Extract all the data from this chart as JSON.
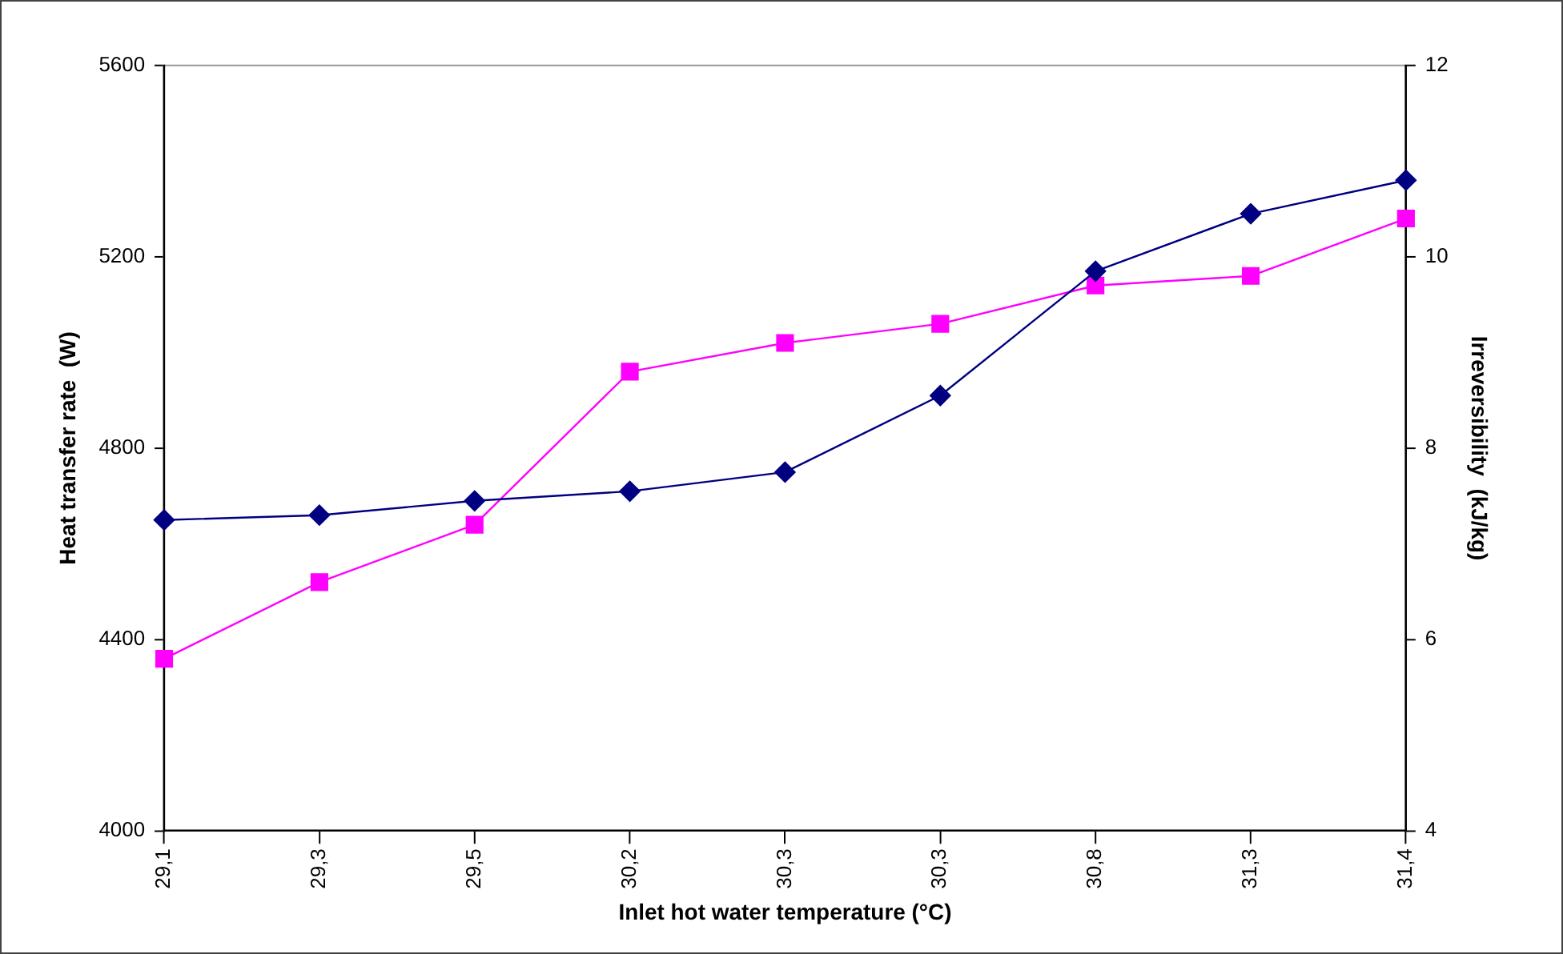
{
  "chart_data": {
    "type": "line",
    "xlabel": "Inlet hot water temperature (°C)",
    "ylabel": "Heat transfer rate  (W)",
    "y2label": "Irreversibility  (kJ/kg)",
    "categories": [
      "29,1",
      "29,3",
      "29,5",
      "30,2",
      "30,3",
      "30,3",
      "30,8",
      "31,3",
      "31,4"
    ],
    "series": [
      {
        "color": "#000080",
        "marker": "diamond",
        "values": [
          4650,
          4660,
          4690,
          4710,
          4750,
          4910,
          5170,
          5290,
          5360
        ]
      },
      {
        "color": "#ff00ff",
        "marker": "square",
        "axis": "y2",
        "values": [
          5.8,
          6.6,
          7.2,
          8.8,
          9.1,
          9.3,
          9.7,
          9.8,
          10.4
        ]
      }
    ],
    "ylim": [
      4000,
      5600
    ],
    "yticks": [
      4000,
      4400,
      4800,
      5200,
      5600
    ],
    "y2lim": [
      4,
      12
    ],
    "y2ticks": [
      4,
      6,
      8,
      10,
      12
    ],
    "grid": false,
    "legend": false
  }
}
